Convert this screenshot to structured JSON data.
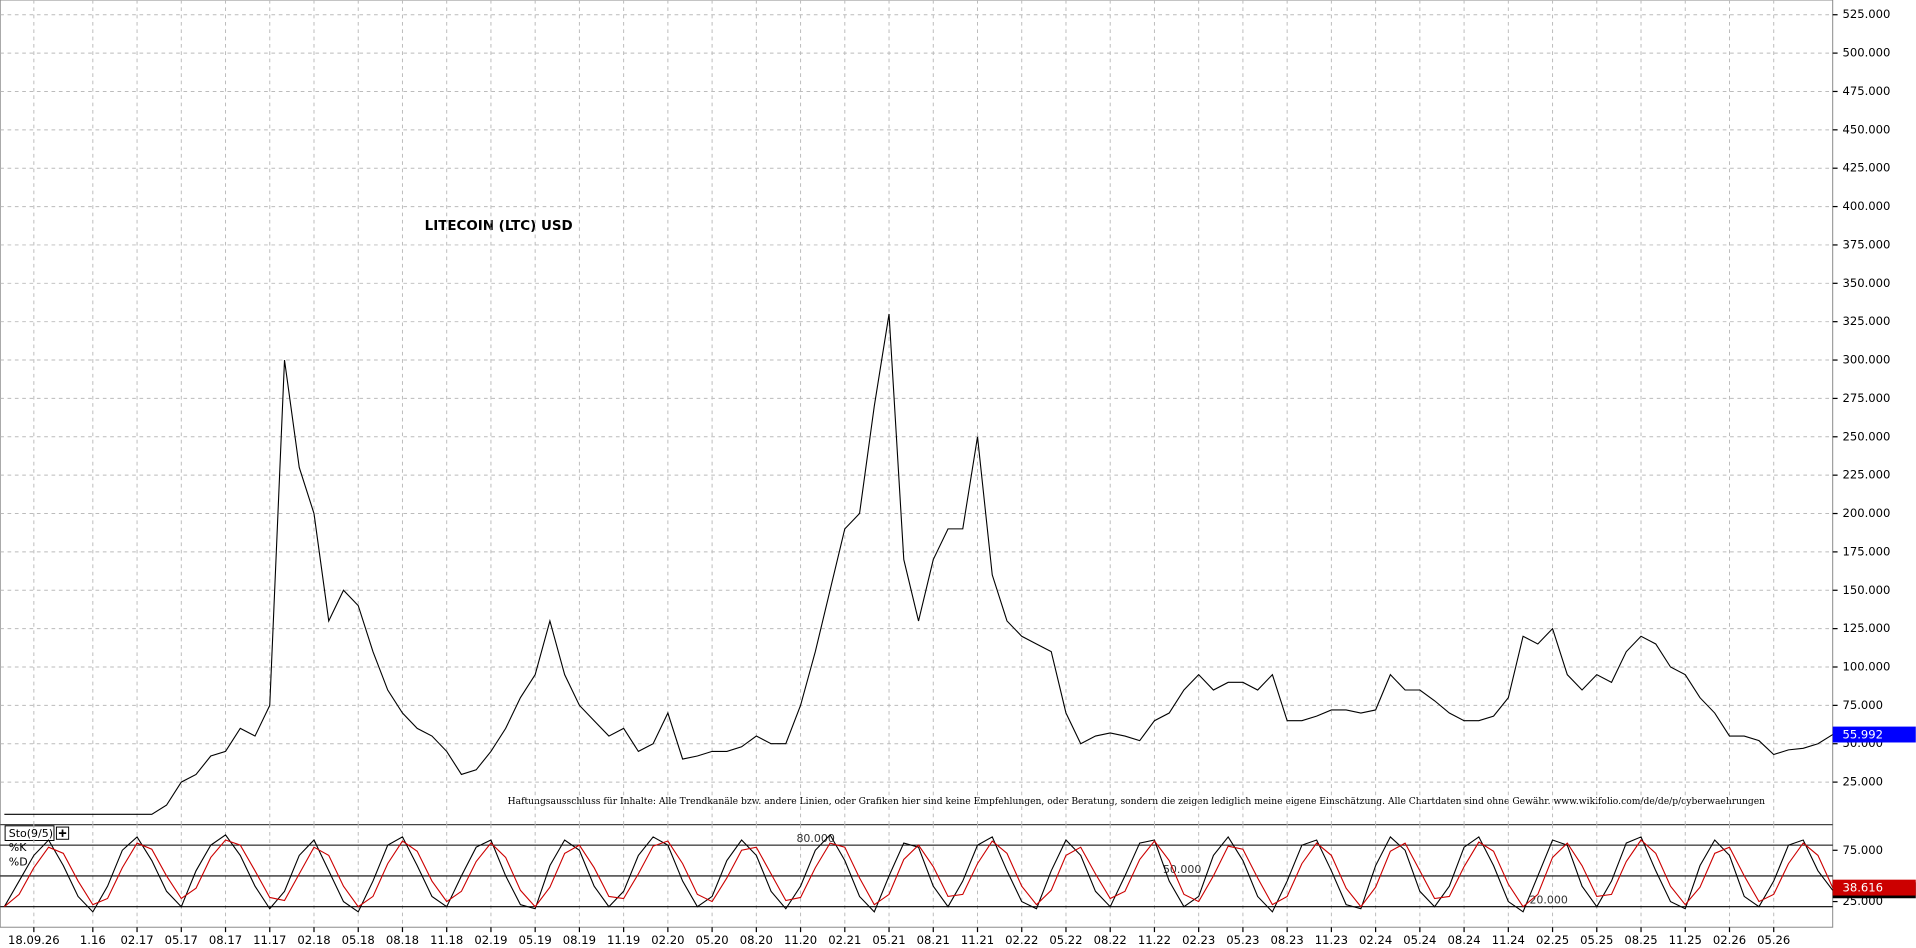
{
  "chart_data": [
    {
      "type": "line",
      "title": "LITECOIN (LTC) USD",
      "annotation": "Haftungsausschluss für Inhalte: Alle Trendkanäle bzw. andere Linien, oder Grafiken hier sind keine Empfehlungen, oder Beratung, sondern die zeigen lediglich meine eigene Einschätzung. Alle Chartdaten sind ohne Gewähr.  www.wikifolio.com/de/de/p/cyberwaehrungen",
      "x": [
        -9,
        -8,
        -7,
        -6,
        -5,
        -4,
        -3,
        -2,
        -1,
        0,
        1,
        2,
        3,
        4,
        5,
        6,
        7,
        8,
        9,
        10,
        11,
        12,
        13,
        14,
        15,
        16,
        17,
        18,
        19,
        20,
        21,
        22,
        23,
        24,
        25,
        26,
        27,
        28,
        29,
        30,
        31,
        32,
        33,
        34,
        35,
        36,
        37,
        38,
        39,
        40,
        41,
        42,
        43,
        44,
        45,
        46,
        47,
        48,
        49,
        50,
        51,
        52,
        53,
        54,
        55,
        56,
        57,
        58,
        59,
        60,
        61,
        62,
        63,
        64,
        65,
        66,
        67,
        68,
        69,
        70,
        71,
        72,
        73,
        74,
        75,
        76,
        77,
        78,
        79,
        80,
        81,
        82,
        83,
        84,
        85,
        86,
        87,
        88,
        89,
        90,
        91,
        92,
        93,
        94,
        95,
        96,
        97,
        98,
        99,
        100,
        101,
        102,
        103,
        104,
        105,
        106,
        107,
        108,
        109,
        110,
        111,
        112,
        113,
        114,
        115
      ],
      "series": [
        {
          "color": "#000000",
          "values": [
            4,
            4,
            4,
            4,
            4,
            4,
            4,
            4,
            4,
            4,
            4,
            10,
            25,
            30,
            42,
            45,
            60,
            55,
            75,
            300,
            230,
            200,
            130,
            150,
            140,
            110,
            85,
            70,
            60,
            55,
            45,
            30,
            33,
            45,
            60,
            80,
            95,
            130,
            95,
            75,
            65,
            55,
            60,
            45,
            50,
            70,
            40,
            42,
            45,
            45,
            48,
            55,
            50,
            50,
            75,
            110,
            150,
            190,
            200,
            270,
            330,
            170,
            130,
            170,
            190,
            190,
            250,
            160,
            130,
            120,
            115,
            110,
            70,
            50,
            55,
            57,
            55,
            52,
            65,
            70,
            85,
            95,
            85,
            90,
            90,
            85,
            95,
            65,
            65,
            68,
            72,
            72,
            70,
            72,
            95,
            85,
            85,
            78,
            70,
            65,
            65,
            68,
            80,
            120,
            115,
            125,
            95,
            85,
            95,
            90,
            110,
            120,
            115,
            100,
            95,
            80,
            70,
            55,
            55,
            52,
            43,
            46,
            47,
            50,
            55.992
          ]
        }
      ],
      "last_value_color": "#0000ff",
      "xlim": [
        -9.28,
        115
      ],
      "ylim": [
        -2.7,
        534.6
      ],
      "yticks": [
        {
          "value": 25,
          "label": "25.000"
        },
        {
          "value": 50,
          "label": "50.000"
        },
        {
          "value": 75,
          "label": "75.000"
        },
        {
          "value": 100,
          "label": "100.000"
        },
        {
          "value": 125,
          "label": "125.000"
        },
        {
          "value": 150,
          "label": "150.000"
        },
        {
          "value": 175,
          "label": "175.000"
        },
        {
          "value": 200,
          "label": "200.000"
        },
        {
          "value": 225,
          "label": "225.000"
        },
        {
          "value": 250,
          "label": "250.000"
        },
        {
          "value": 275,
          "label": "275.000"
        },
        {
          "value": 300,
          "label": "300.000"
        },
        {
          "value": 325,
          "label": "325.000"
        },
        {
          "value": 350,
          "label": "350.000"
        },
        {
          "value": 375,
          "label": "375.000"
        },
        {
          "value": 400,
          "label": "400.000"
        },
        {
          "value": 425,
          "label": "425.000"
        },
        {
          "value": 450,
          "label": "450.000"
        },
        {
          "value": 475,
          "label": "475.000"
        },
        {
          "value": 500,
          "label": "500.000"
        },
        {
          "value": 525,
          "label": "525.000"
        }
      ],
      "grid": true
    },
    {
      "type": "line",
      "title": "Sto(9/5)",
      "x": [
        -9,
        -8,
        -7,
        -6,
        -5,
        -4,
        -3,
        -2,
        -1,
        0,
        1,
        2,
        3,
        4,
        5,
        6,
        7,
        8,
        9,
        10,
        11,
        12,
        13,
        14,
        15,
        16,
        17,
        18,
        19,
        20,
        21,
        22,
        23,
        24,
        25,
        26,
        27,
        28,
        29,
        30,
        31,
        32,
        33,
        34,
        35,
        36,
        37,
        38,
        39,
        40,
        41,
        42,
        43,
        44,
        45,
        46,
        47,
        48,
        49,
        50,
        51,
        52,
        53,
        54,
        55,
        56,
        57,
        58,
        59,
        60,
        61,
        62,
        63,
        64,
        65,
        66,
        67,
        68,
        69,
        70,
        71,
        72,
        73,
        74,
        75,
        76,
        77,
        78,
        79,
        80,
        81,
        82,
        83,
        84,
        85,
        86,
        87,
        88,
        89,
        90,
        91,
        92,
        93,
        94,
        95,
        96,
        97,
        98,
        99,
        100,
        101,
        102,
        103,
        104,
        105,
        106,
        107,
        108,
        109,
        110,
        111,
        112,
        113,
        114,
        115
      ],
      "series": [
        {
          "name": "%K",
          "color": "#000000",
          "values": [
            20,
            45,
            70,
            85,
            60,
            30,
            15,
            40,
            75,
            88,
            65,
            35,
            20,
            55,
            80,
            90,
            70,
            40,
            18,
            35,
            70,
            85,
            55,
            25,
            15,
            45,
            80,
            88,
            60,
            30,
            20,
            50,
            78,
            85,
            50,
            22,
            18,
            60,
            85,
            75,
            40,
            20,
            35,
            70,
            88,
            80,
            45,
            20,
            30,
            65,
            85,
            70,
            35,
            18,
            40,
            75,
            90,
            65,
            30,
            15,
            50,
            82,
            78,
            40,
            20,
            45,
            80,
            88,
            55,
            25,
            18,
            55,
            85,
            70,
            35,
            20,
            50,
            82,
            85,
            45,
            20,
            30,
            70,
            88,
            65,
            30,
            15,
            45,
            80,
            85,
            55,
            22,
            18,
            60,
            88,
            75,
            35,
            20,
            40,
            78,
            88,
            60,
            25,
            15,
            50,
            85,
            80,
            40,
            20,
            45,
            82,
            88,
            55,
            25,
            18,
            60,
            85,
            70,
            30,
            20,
            45,
            80,
            85,
            55,
            35.974
          ]
        },
        {
          "name": "%D",
          "color": "#cc0000",
          "values": [
            20,
            32,
            58,
            78,
            72,
            45,
            22,
            28,
            58,
            82,
            76,
            50,
            28,
            38,
            68,
            85,
            80,
            55,
            29,
            26,
            52,
            78,
            70,
            40,
            20,
            30,
            62,
            84,
            74,
            45,
            25,
            35,
            64,
            82,
            68,
            36,
            20,
            39,
            72,
            80,
            58,
            30,
            28,
            52,
            79,
            84,
            62,
            32,
            25,
            48,
            75,
            78,
            52,
            26,
            29,
            58,
            82,
            78,
            48,
            22,
            32,
            66,
            80,
            59,
            30,
            32,
            62,
            84,
            72,
            40,
            22,
            36,
            70,
            78,
            52,
            28,
            35,
            66,
            84,
            65,
            32,
            25,
            50,
            79,
            76,
            48,
            22,
            30,
            62,
            82,
            70,
            38,
            20,
            39,
            74,
            82,
            55,
            28,
            30,
            59,
            83,
            74,
            42,
            20,
            32,
            68,
            82,
            60,
            30,
            32,
            64,
            85,
            72,
            40,
            22,
            39,
            72,
            78,
            50,
            25,
            32,
            62,
            82,
            70,
            38.616
          ]
        }
      ],
      "levels": [
        {
          "value": 80,
          "label": "80.000"
        },
        {
          "value": 50,
          "label": "50.000"
        },
        {
          "value": 20,
          "label": "20.000"
        }
      ],
      "xlim": [
        -9.28,
        115
      ],
      "ylim": [
        0,
        100
      ],
      "yticks": [
        {
          "value": 75,
          "label": "75.000"
        },
        {
          "value": 25,
          "label": "25.000"
        }
      ],
      "xticks": [
        {
          "value": -7,
          "label": "18.09.26"
        },
        {
          "value": -3,
          "label": "1.16"
        },
        {
          "value": 0,
          "label": "02.17"
        },
        {
          "value": 3,
          "label": "05.17"
        },
        {
          "value": 6,
          "label": "08.17"
        },
        {
          "value": 9,
          "label": "11.17"
        },
        {
          "value": 12,
          "label": "02.18"
        },
        {
          "value": 15,
          "label": "05.18"
        },
        {
          "value": 18,
          "label": "08.18"
        },
        {
          "value": 21,
          "label": "11.18"
        },
        {
          "value": 24,
          "label": "02.19"
        },
        {
          "value": 27,
          "label": "05.19"
        },
        {
          "value": 30,
          "label": "08.19"
        },
        {
          "value": 33,
          "label": "11.19"
        },
        {
          "value": 36,
          "label": "02.20"
        },
        {
          "value": 39,
          "label": "05.20"
        },
        {
          "value": 42,
          "label": "08.20"
        },
        {
          "value": 45,
          "label": "11.20"
        },
        {
          "value": 48,
          "label": "02.21"
        },
        {
          "value": 51,
          "label": "05.21"
        },
        {
          "value": 54,
          "label": "08.21"
        },
        {
          "value": 57,
          "label": "11.21"
        },
        {
          "value": 60,
          "label": "02.22"
        },
        {
          "value": 63,
          "label": "05.22"
        },
        {
          "value": 66,
          "label": "08.22"
        },
        {
          "value": 69,
          "label": "11.22"
        },
        {
          "value": 72,
          "label": "02.23"
        },
        {
          "value": 75,
          "label": "05.23"
        },
        {
          "value": 78,
          "label": "08.23"
        },
        {
          "value": 81,
          "label": "11.23"
        },
        {
          "value": 84,
          "label": "02.24"
        },
        {
          "value": 87,
          "label": "05.24"
        },
        {
          "value": 90,
          "label": "08.24"
        },
        {
          "value": 93,
          "label": "11.24"
        },
        {
          "value": 96,
          "label": "02.25"
        },
        {
          "value": 99,
          "label": "05.25"
        },
        {
          "value": 102,
          "label": "08.25"
        },
        {
          "value": 105,
          "label": "11.25"
        },
        {
          "value": 108,
          "label": "02.26"
        },
        {
          "value": 111,
          "label": "05.26"
        }
      ]
    }
  ]
}
